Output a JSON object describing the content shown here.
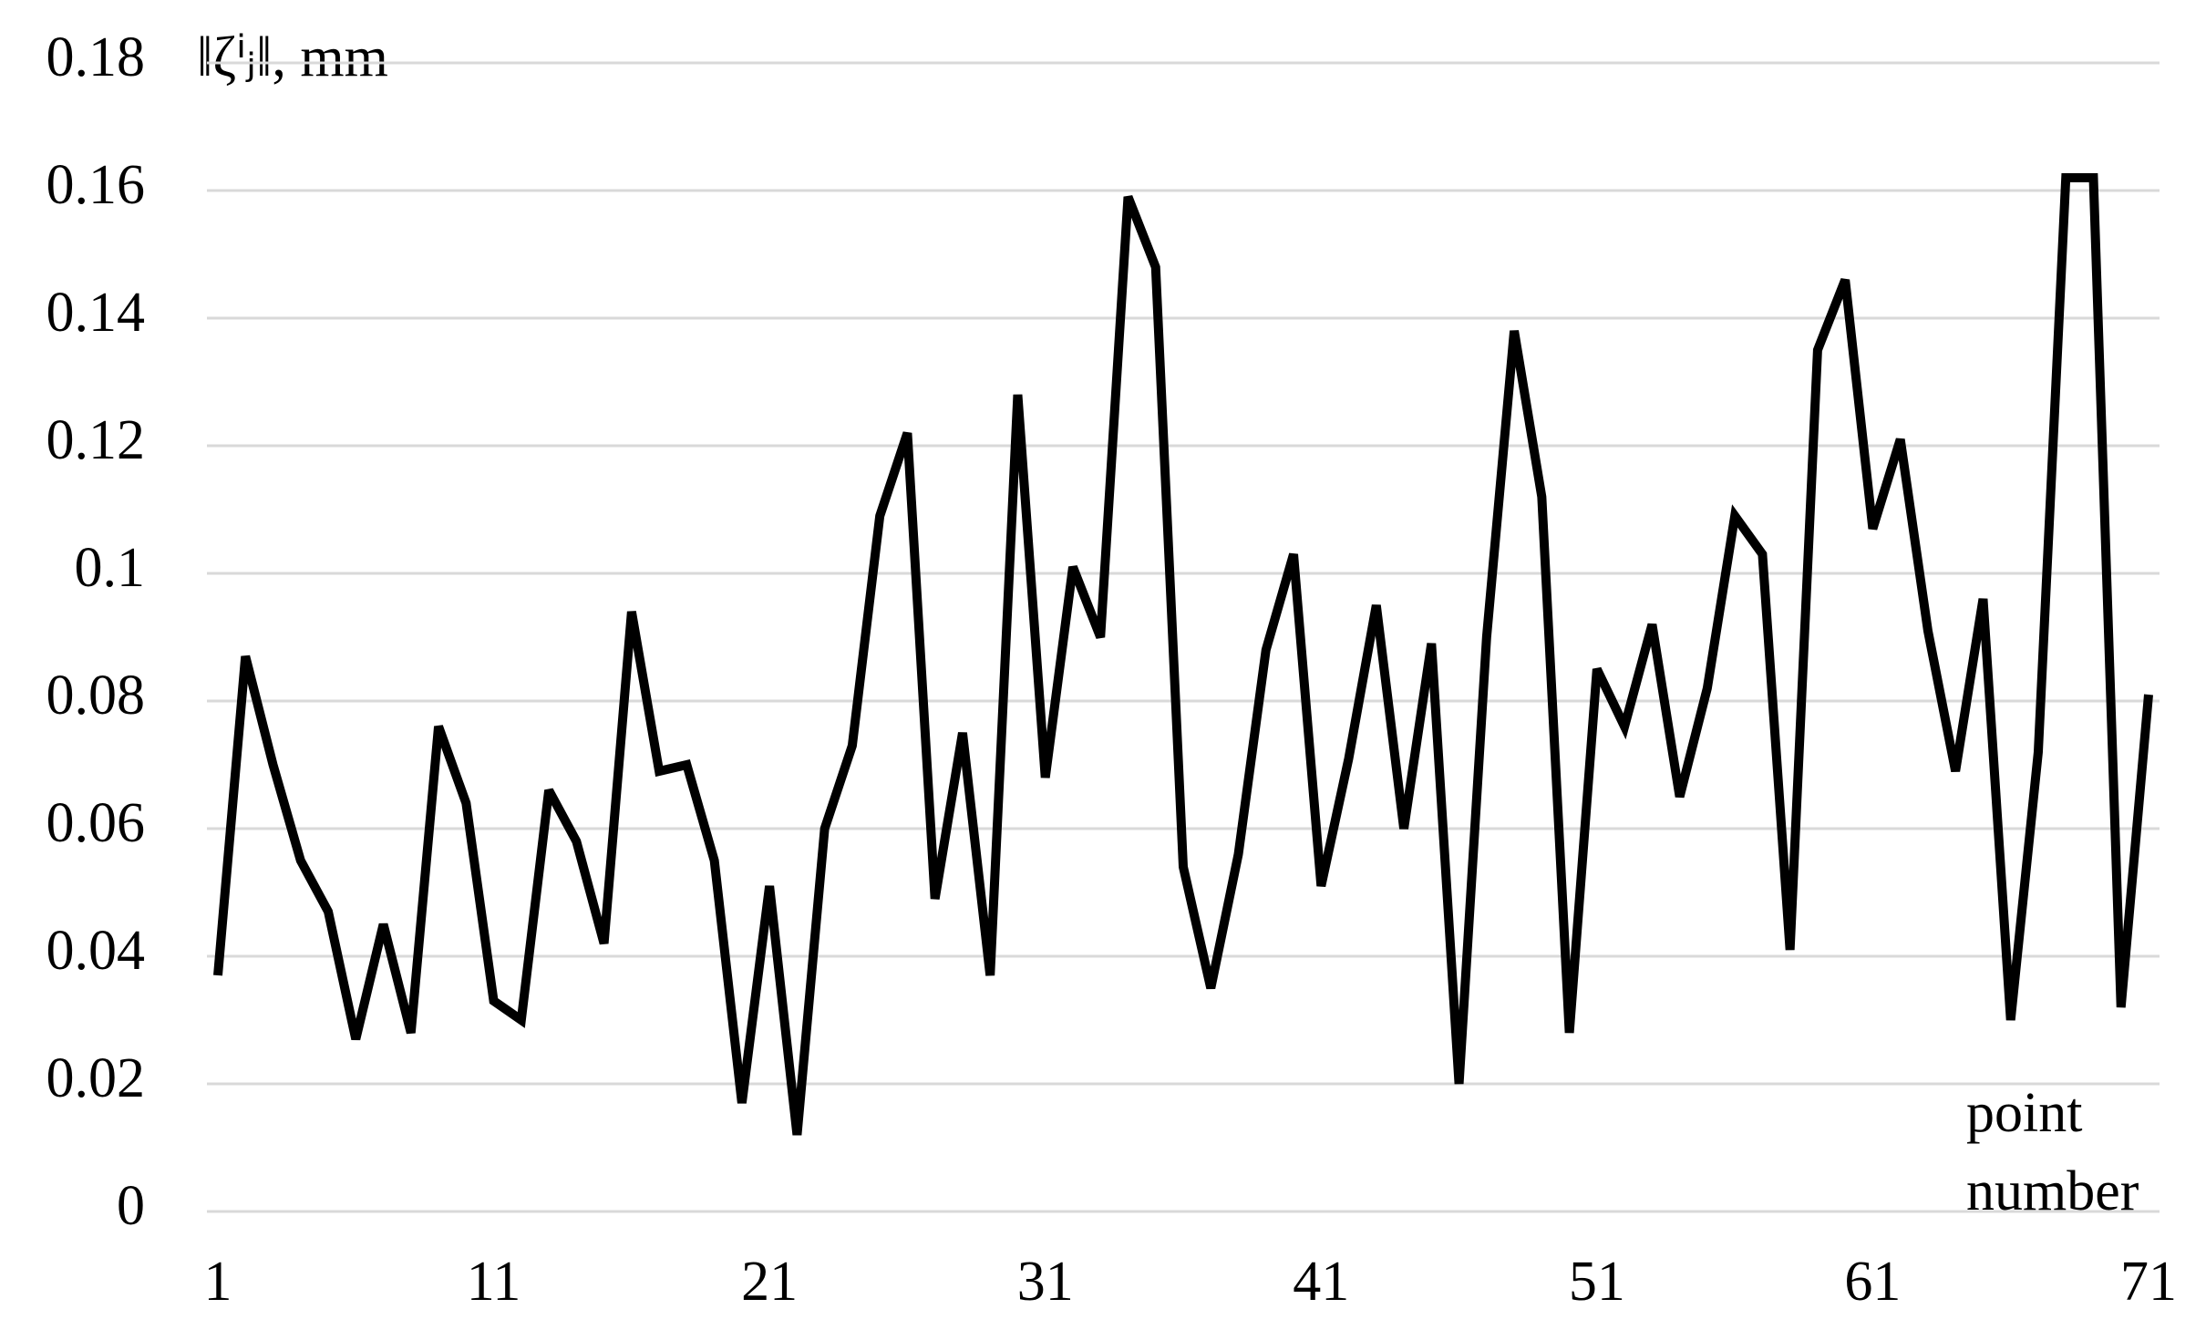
{
  "chart_data": {
    "type": "line",
    "ylabel": "‖ζⁱⱼ‖, mm",
    "xlabel": "point number",
    "x": [
      1,
      2,
      3,
      4,
      5,
      6,
      7,
      8,
      9,
      10,
      11,
      12,
      13,
      14,
      15,
      16,
      17,
      18,
      19,
      20,
      21,
      22,
      23,
      24,
      25,
      26,
      27,
      28,
      29,
      30,
      31,
      32,
      33,
      34,
      35,
      36,
      37,
      38,
      39,
      40,
      41,
      42,
      43,
      44,
      45,
      46,
      47,
      48,
      49,
      50,
      51,
      52,
      53,
      54,
      55,
      56,
      57,
      58,
      59,
      60,
      61,
      62,
      63,
      64,
      65,
      66,
      67,
      68,
      69,
      70,
      71
    ],
    "series": [
      {
        "color": "#000000",
        "values": [
          0.037,
          0.087,
          0.07,
          0.055,
          0.047,
          0.027,
          0.045,
          0.028,
          0.076,
          0.064,
          0.033,
          0.03,
          0.066,
          0.058,
          0.042,
          0.094,
          0.069,
          0.07,
          0.055,
          0.017,
          0.051,
          0.012,
          0.06,
          0.073,
          0.109,
          0.122,
          0.049,
          0.075,
          0.037,
          0.128,
          0.068,
          0.101,
          0.09,
          0.159,
          0.148,
          0.054,
          0.035,
          0.056,
          0.088,
          0.103,
          0.051,
          0.071,
          0.095,
          0.06,
          0.089,
          0.02,
          0.09,
          0.138,
          0.112,
          0.028,
          0.085,
          0.076,
          0.092,
          0.065,
          0.082,
          0.109,
          0.103,
          0.041,
          0.135,
          0.146,
          0.107,
          0.121,
          0.091,
          0.069,
          0.096,
          0.03,
          0.072,
          0.162,
          0.162,
          0.032,
          0.081
        ]
      }
    ],
    "xlim": [
      1,
      71
    ],
    "xticks": [
      1,
      11,
      21,
      31,
      41,
      51,
      61,
      71
    ],
    "ylim": [
      0,
      0.18
    ],
    "yticks": [
      0,
      0.02,
      0.04,
      0.06,
      0.08,
      0.1,
      0.12,
      0.14,
      0.16,
      0.18
    ],
    "grid": true
  }
}
